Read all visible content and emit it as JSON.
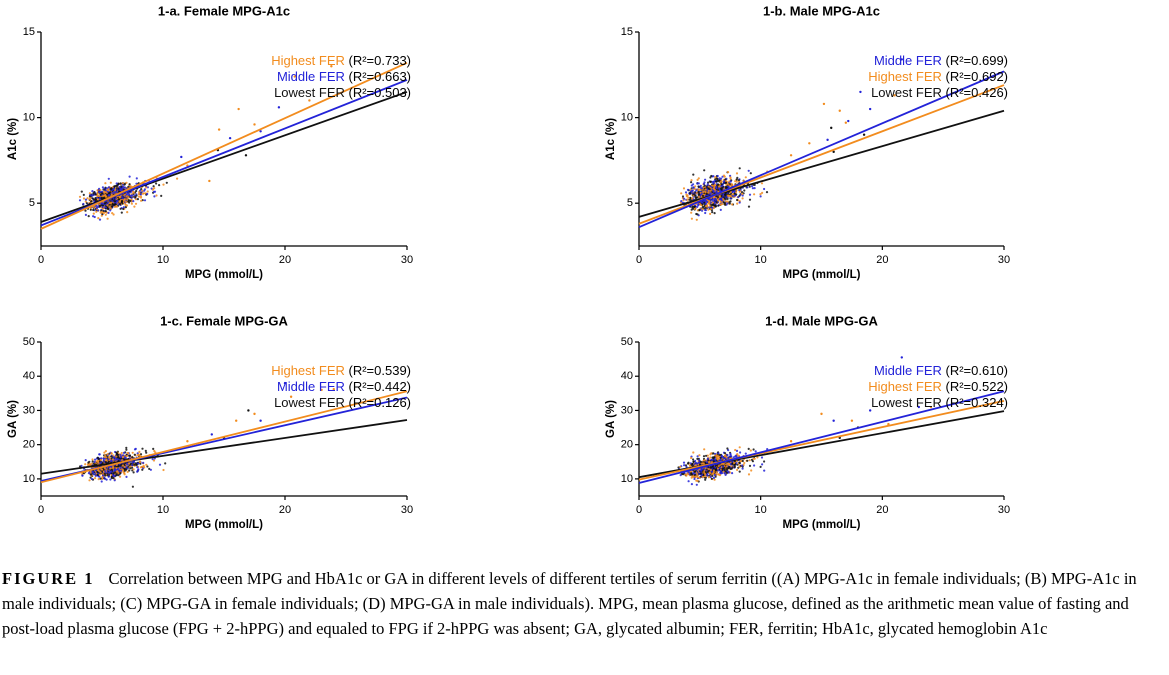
{
  "caption": {
    "label": "FIGURE 1",
    "text": "Correlation between MPG and HbA1c or GA in different levels of different tertiles of serum ferritin ((A) MPG-A1c in female individuals; (B) MPG-A1c in male individuals; (C) MPG-GA in female individuals; (D) MPG-GA in male individuals). MPG, mean plasma glucose, defined as the arithmetic mean value of fasting and post-load plasma glucose (FPG + 2-hPPG) and equaled to FPG if 2-hPPG was absent; GA, glycated albumin; FER, ferritin; HbA1c, glycated hemoglobin A1c"
  },
  "colors": {
    "highest": "#f28c1e",
    "middle": "#2323d8",
    "lowest": "#111111"
  },
  "chart_data": [
    {
      "type": "scatter",
      "title": "1-a. Female MPG-A1c",
      "xlabel": "MPG (mmol/L)",
      "ylabel": "A1c (%)",
      "xlim": [
        0,
        30
      ],
      "ylim": [
        2.5,
        15
      ],
      "xticks": [
        0,
        10,
        20,
        30
      ],
      "yticks": [
        5,
        10,
        15
      ],
      "cloud": {
        "center": [
          5.7,
          5.3
        ],
        "spread": [
          0.9,
          0.35
        ]
      },
      "series": [
        {
          "name": "Highest FER",
          "r2": "(R²=0.733)",
          "color": "#f28c1e",
          "fit": [
            [
              0,
              3.5
            ],
            [
              30,
              13.2
            ]
          ],
          "outliers": [
            [
              20.8,
              12.4
            ],
            [
              23.8,
              13.0
            ],
            [
              16.2,
              10.5
            ],
            [
              14.6,
              9.3
            ],
            [
              22.0,
              11.0
            ],
            [
              17.5,
              9.6
            ],
            [
              12.0,
              7.2
            ],
            [
              13.8,
              6.3
            ]
          ]
        },
        {
          "name": "Middle FER",
          "r2": "(R²=0.663)",
          "color": "#2323d8",
          "fit": [
            [
              0,
              3.7
            ],
            [
              30,
              12.2
            ]
          ],
          "outliers": [
            [
              19.5,
              10.6
            ],
            [
              15.5,
              8.8
            ],
            [
              18.0,
              9.2
            ],
            [
              11.5,
              7.7
            ]
          ]
        },
        {
          "name": "Lowest FER",
          "r2": "(R²=0.503)",
          "color": "#111111",
          "fit": [
            [
              0,
              3.9
            ],
            [
              30,
              11.5
            ]
          ],
          "outliers": [
            [
              14.5,
              8.1
            ],
            [
              16.8,
              7.8
            ]
          ]
        }
      ]
    },
    {
      "type": "scatter",
      "title": "1-b. Male MPG-A1c",
      "xlabel": "MPG (mmol/L)",
      "ylabel": "A1c (%)",
      "xlim": [
        0,
        30
      ],
      "ylim": [
        2.5,
        15
      ],
      "xticks": [
        0,
        10,
        20,
        30
      ],
      "yticks": [
        5,
        10,
        15
      ],
      "cloud": {
        "center": [
          5.9,
          5.5
        ],
        "spread": [
          0.95,
          0.42
        ]
      },
      "series": [
        {
          "name": "Middle FER",
          "r2": "(R²=0.699)",
          "color": "#2323d8",
          "fit": [
            [
              0,
              3.6
            ],
            [
              30,
              12.7
            ]
          ],
          "outliers": [
            [
              21.6,
              13.4
            ],
            [
              18.2,
              11.5
            ],
            [
              19.0,
              10.5
            ],
            [
              15.5,
              8.7
            ],
            [
              17.2,
              9.8
            ]
          ]
        },
        {
          "name": "Highest FER",
          "r2": "(R²=0.692)",
          "color": "#f28c1e",
          "fit": [
            [
              0,
              3.8
            ],
            [
              30,
              11.9
            ]
          ],
          "outliers": [
            [
              15.2,
              10.8
            ],
            [
              16.5,
              10.4
            ],
            [
              21.0,
              11.3
            ],
            [
              12.5,
              7.8
            ],
            [
              14.0,
              8.5
            ],
            [
              17.0,
              9.7
            ]
          ]
        },
        {
          "name": "Lowest FER",
          "r2": "(R²=0.426)",
          "color": "#111111",
          "fit": [
            [
              0,
              4.2
            ],
            [
              30,
              10.4
            ]
          ],
          "outliers": [
            [
              15.8,
              9.4
            ],
            [
              18.5,
              9.0
            ],
            [
              16.0,
              8.0
            ]
          ]
        }
      ]
    },
    {
      "type": "scatter",
      "title": "1-c. Female MPG-GA",
      "xlabel": "MPG (mmol/L)",
      "ylabel": "GA (%)",
      "xlim": [
        0,
        30
      ],
      "ylim": [
        5,
        50
      ],
      "xticks": [
        0,
        10,
        20,
        30
      ],
      "yticks": [
        10,
        20,
        30,
        40,
        50
      ],
      "cloud": {
        "center": [
          5.7,
          13.8
        ],
        "spread": [
          0.9,
          1.5
        ]
      },
      "series": [
        {
          "name": "Highest FER",
          "r2": "(R²=0.539)",
          "color": "#f28c1e",
          "fit": [
            [
              0,
              9.0
            ],
            [
              30,
              35.6
            ]
          ],
          "outliers": [
            [
              24.0,
              36.2
            ],
            [
              23.0,
              36.0
            ],
            [
              20.5,
              34.0
            ],
            [
              16.0,
              27.0
            ],
            [
              17.5,
              29.0
            ],
            [
              12.0,
              21.0
            ],
            [
              11.0,
              18.5
            ]
          ]
        },
        {
          "name": "Middle FER",
          "r2": "(R²=0.442)",
          "color": "#2323d8",
          "fit": [
            [
              0,
              9.4
            ],
            [
              30,
              33.8
            ]
          ],
          "outliers": [
            [
              20.0,
              38.0
            ],
            [
              18.0,
              27.0
            ],
            [
              14.0,
              23.0
            ]
          ]
        },
        {
          "name": "Lowest FER",
          "r2": "(R²=0.126)",
          "color": "#111111",
          "fit": [
            [
              0,
              11.5
            ],
            [
              30,
              27.2
            ]
          ],
          "outliers": [
            [
              17.0,
              30.0
            ],
            [
              15.0,
              22.0
            ]
          ]
        }
      ]
    },
    {
      "type": "scatter",
      "title": "1-d. Male MPG-GA",
      "xlabel": "MPG (mmol/L)",
      "ylabel": "GA (%)",
      "xlim": [
        0,
        30
      ],
      "ylim": [
        5,
        50
      ],
      "xticks": [
        0,
        10,
        20,
        30
      ],
      "yticks": [
        10,
        20,
        30,
        40,
        50
      ],
      "cloud": {
        "center": [
          5.9,
          13.6
        ],
        "spread": [
          0.95,
          1.5
        ]
      },
      "series": [
        {
          "name": "Middle FER",
          "r2": "(R²=0.610)",
          "color": "#2323d8",
          "fit": [
            [
              0,
              8.8
            ],
            [
              30,
              35.6
            ]
          ],
          "outliers": [
            [
              21.6,
              45.5
            ],
            [
              19.0,
              30.0
            ],
            [
              16.0,
              27.0
            ],
            [
              23.0,
              31.0
            ]
          ]
        },
        {
          "name": "Highest FER",
          "r2": "(R²=0.522)",
          "color": "#f28c1e",
          "fit": [
            [
              0,
              9.8
            ],
            [
              30,
              32.8
            ]
          ],
          "outliers": [
            [
              15.0,
              29.0
            ],
            [
              17.5,
              27.0
            ],
            [
              24.0,
              31.0
            ],
            [
              12.5,
              21.0
            ],
            [
              20.5,
              26.0
            ]
          ]
        },
        {
          "name": "Lowest FER",
          "r2": "(R²=0.324)",
          "color": "#111111",
          "fit": [
            [
              0,
              10.5
            ],
            [
              30,
              29.8
            ]
          ],
          "outliers": [
            [
              18.0,
              25.0
            ],
            [
              16.5,
              22.0
            ]
          ]
        }
      ]
    }
  ]
}
